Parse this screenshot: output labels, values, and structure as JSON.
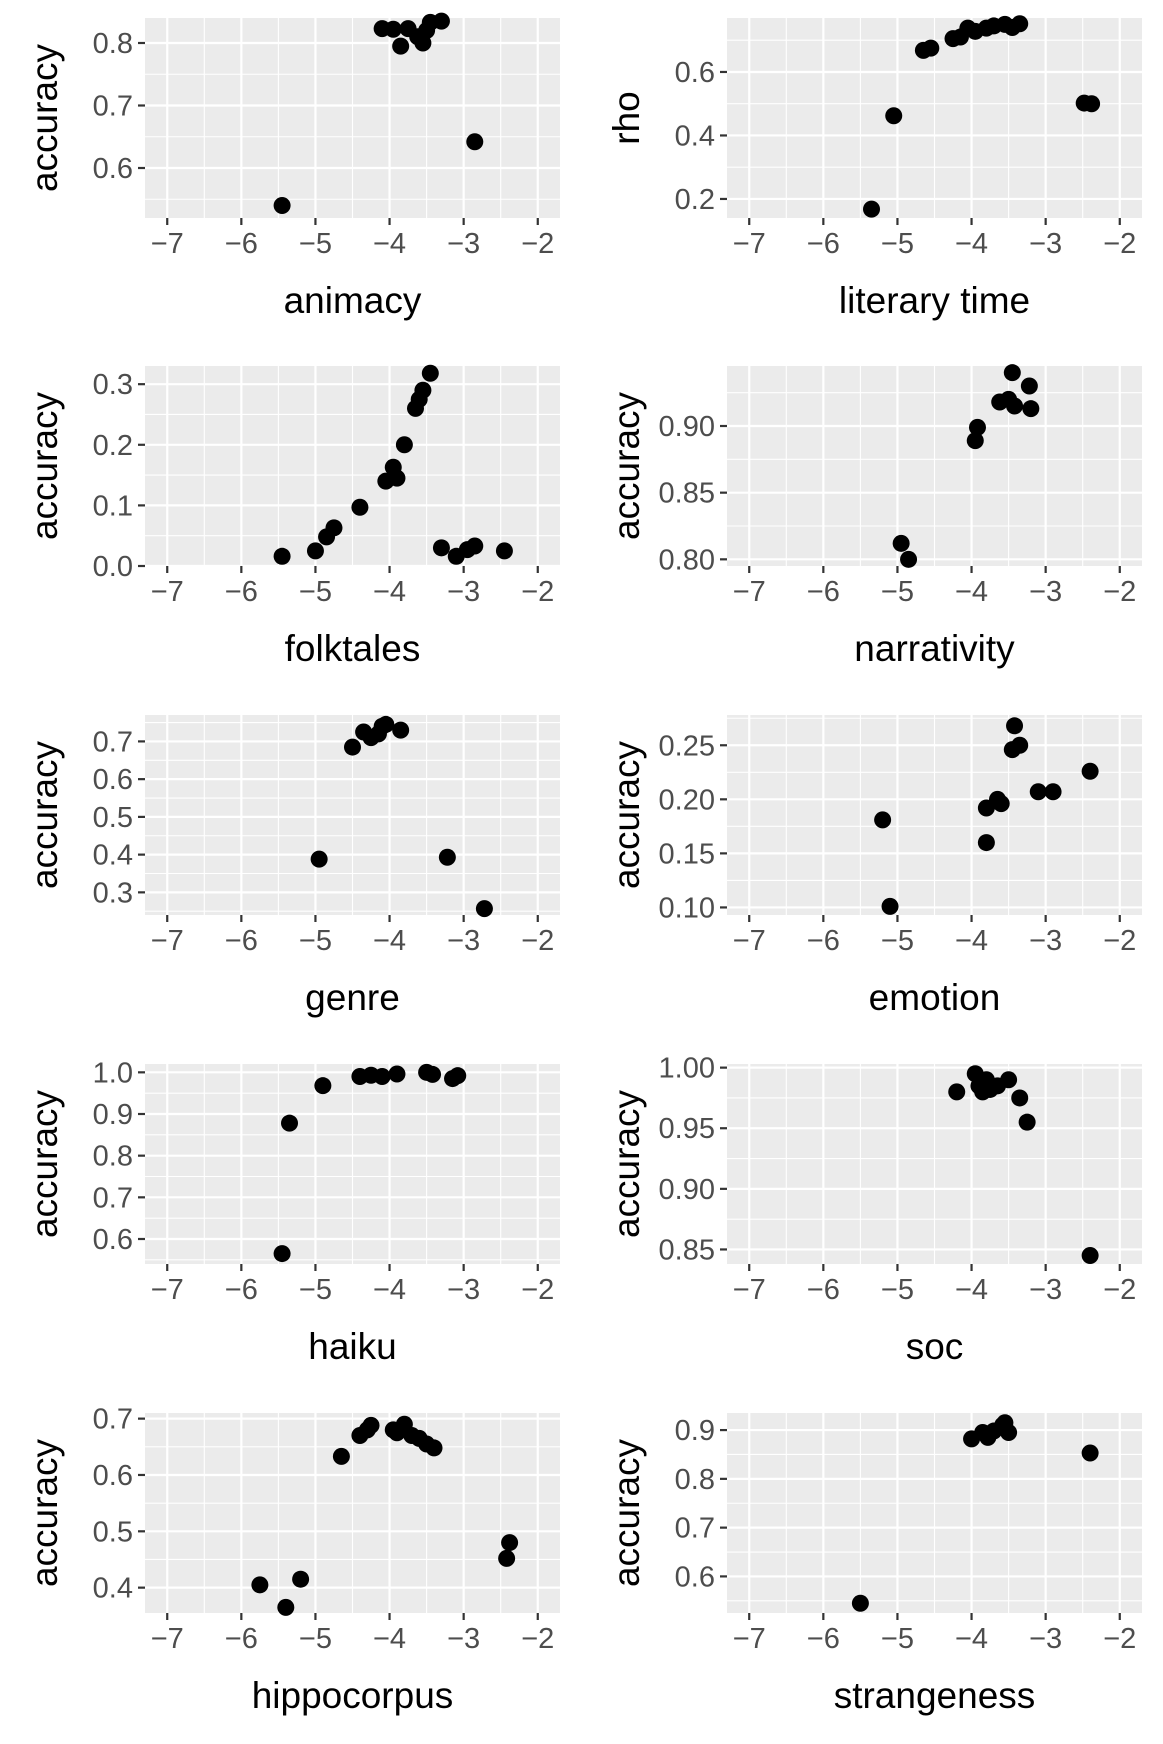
{
  "chart_data": [
    {
      "type": "scatter",
      "xlabel": "animacy",
      "ylabel": "accuracy",
      "xlim": [
        -7.3,
        -1.7
      ],
      "ylim": [
        0.52,
        0.84
      ],
      "xticks": [
        -7,
        -6,
        -5,
        -4,
        -3,
        -2
      ],
      "xtick_labels": [
        "−7",
        "−6",
        "−5",
        "−4",
        "−3",
        "−2"
      ],
      "yticks": [
        0.6,
        0.7,
        0.8
      ],
      "ytick_labels": [
        "0.6",
        "0.7",
        "0.8"
      ],
      "grid": true,
      "points": [
        {
          "x": -5.45,
          "y": 0.54
        },
        {
          "x": -4.1,
          "y": 0.823
        },
        {
          "x": -3.95,
          "y": 0.822
        },
        {
          "x": -3.85,
          "y": 0.795
        },
        {
          "x": -3.75,
          "y": 0.823
        },
        {
          "x": -3.62,
          "y": 0.81
        },
        {
          "x": -3.55,
          "y": 0.8
        },
        {
          "x": -3.5,
          "y": 0.82
        },
        {
          "x": -3.45,
          "y": 0.833
        },
        {
          "x": -3.3,
          "y": 0.835
        },
        {
          "x": -2.85,
          "y": 0.642
        }
      ]
    },
    {
      "type": "scatter",
      "xlabel": "literary time",
      "ylabel": "rho",
      "xlim": [
        -7.3,
        -1.7
      ],
      "ylim": [
        0.14,
        0.77
      ],
      "xticks": [
        -7,
        -6,
        -5,
        -4,
        -3,
        -2
      ],
      "xtick_labels": [
        "−7",
        "−6",
        "−5",
        "−4",
        "−3",
        "−2"
      ],
      "yticks": [
        0.2,
        0.4,
        0.6
      ],
      "ytick_labels": [
        "0.2",
        "0.4",
        "0.6"
      ],
      "grid": true,
      "points": [
        {
          "x": -5.35,
          "y": 0.168
        },
        {
          "x": -5.05,
          "y": 0.462
        },
        {
          "x": -4.65,
          "y": 0.668
        },
        {
          "x": -4.55,
          "y": 0.675
        },
        {
          "x": -4.25,
          "y": 0.705
        },
        {
          "x": -4.15,
          "y": 0.71
        },
        {
          "x": -4.05,
          "y": 0.738
        },
        {
          "x": -3.95,
          "y": 0.728
        },
        {
          "x": -3.8,
          "y": 0.738
        },
        {
          "x": -3.7,
          "y": 0.745
        },
        {
          "x": -3.55,
          "y": 0.75
        },
        {
          "x": -3.45,
          "y": 0.74
        },
        {
          "x": -3.35,
          "y": 0.752
        },
        {
          "x": -2.48,
          "y": 0.502
        },
        {
          "x": -2.38,
          "y": 0.5
        }
      ]
    },
    {
      "type": "scatter",
      "xlabel": "folktales",
      "ylabel": "accuracy",
      "xlim": [
        -7.3,
        -1.7
      ],
      "ylim": [
        0.0,
        0.33
      ],
      "xticks": [
        -7,
        -6,
        -5,
        -4,
        -3,
        -2
      ],
      "xtick_labels": [
        "−7",
        "−6",
        "−5",
        "−4",
        "−3",
        "−2"
      ],
      "yticks": [
        0.0,
        0.1,
        0.2,
        0.3
      ],
      "ytick_labels": [
        "0.0",
        "0.1",
        "0.2",
        "0.3"
      ],
      "grid": true,
      "points": [
        {
          "x": -5.45,
          "y": 0.016
        },
        {
          "x": -5.0,
          "y": 0.025
        },
        {
          "x": -4.85,
          "y": 0.048
        },
        {
          "x": -4.75,
          "y": 0.063
        },
        {
          "x": -4.4,
          "y": 0.097
        },
        {
          "x": -4.05,
          "y": 0.14
        },
        {
          "x": -3.95,
          "y": 0.163
        },
        {
          "x": -3.9,
          "y": 0.145
        },
        {
          "x": -3.8,
          "y": 0.2
        },
        {
          "x": -3.65,
          "y": 0.26
        },
        {
          "x": -3.6,
          "y": 0.275
        },
        {
          "x": -3.55,
          "y": 0.29
        },
        {
          "x": -3.45,
          "y": 0.318
        },
        {
          "x": -3.3,
          "y": 0.03
        },
        {
          "x": -3.1,
          "y": 0.016
        },
        {
          "x": -2.95,
          "y": 0.027
        },
        {
          "x": -2.85,
          "y": 0.033
        },
        {
          "x": -2.45,
          "y": 0.025
        }
      ]
    },
    {
      "type": "scatter",
      "xlabel": "narrativity",
      "ylabel": "accuracy",
      "xlim": [
        -7.3,
        -1.7
      ],
      "ylim": [
        0.795,
        0.945
      ],
      "xticks": [
        -7,
        -6,
        -5,
        -4,
        -3,
        -2
      ],
      "xtick_labels": [
        "−7",
        "−6",
        "−5",
        "−4",
        "−3",
        "−2"
      ],
      "yticks": [
        0.8,
        0.85,
        0.9
      ],
      "ytick_labels": [
        "0.80",
        "0.85",
        "0.90"
      ],
      "grid": true,
      "points": [
        {
          "x": -4.95,
          "y": 0.812
        },
        {
          "x": -4.85,
          "y": 0.8
        },
        {
          "x": -3.95,
          "y": 0.889
        },
        {
          "x": -3.92,
          "y": 0.899
        },
        {
          "x": -3.62,
          "y": 0.918
        },
        {
          "x": -3.5,
          "y": 0.92
        },
        {
          "x": -3.45,
          "y": 0.94
        },
        {
          "x": -3.42,
          "y": 0.915
        },
        {
          "x": -3.22,
          "y": 0.93
        },
        {
          "x": -3.2,
          "y": 0.913
        }
      ]
    },
    {
      "type": "scatter",
      "xlabel": "genre",
      "ylabel": "accuracy",
      "xlim": [
        -7.3,
        -1.7
      ],
      "ylim": [
        0.24,
        0.77
      ],
      "xticks": [
        -7,
        -6,
        -5,
        -4,
        -3,
        -2
      ],
      "xtick_labels": [
        "−7",
        "−6",
        "−5",
        "−4",
        "−3",
        "−2"
      ],
      "yticks": [
        0.3,
        0.4,
        0.5,
        0.6,
        0.7
      ],
      "ytick_labels": [
        "0.3",
        "0.4",
        "0.5",
        "0.6",
        "0.7"
      ],
      "grid": true,
      "points": [
        {
          "x": -4.95,
          "y": 0.388
        },
        {
          "x": -4.5,
          "y": 0.685
        },
        {
          "x": -4.35,
          "y": 0.725
        },
        {
          "x": -4.25,
          "y": 0.71
        },
        {
          "x": -4.15,
          "y": 0.72
        },
        {
          "x": -4.1,
          "y": 0.74
        },
        {
          "x": -4.05,
          "y": 0.745
        },
        {
          "x": -3.85,
          "y": 0.73
        },
        {
          "x": -3.22,
          "y": 0.393
        },
        {
          "x": -2.72,
          "y": 0.257
        }
      ]
    },
    {
      "type": "scatter",
      "xlabel": "emotion",
      "ylabel": "accuracy",
      "xlim": [
        -7.3,
        -1.7
      ],
      "ylim": [
        0.093,
        0.278
      ],
      "xticks": [
        -7,
        -6,
        -5,
        -4,
        -3,
        -2
      ],
      "xtick_labels": [
        "−7",
        "−6",
        "−5",
        "−4",
        "−3",
        "−2"
      ],
      "yticks": [
        0.1,
        0.15,
        0.2,
        0.25
      ],
      "ytick_labels": [
        "0.10",
        "0.15",
        "0.20",
        "0.25"
      ],
      "grid": true,
      "points": [
        {
          "x": -5.2,
          "y": 0.181
        },
        {
          "x": -5.1,
          "y": 0.101
        },
        {
          "x": -3.8,
          "y": 0.16
        },
        {
          "x": -3.8,
          "y": 0.192
        },
        {
          "x": -3.65,
          "y": 0.2
        },
        {
          "x": -3.6,
          "y": 0.196
        },
        {
          "x": -3.45,
          "y": 0.246
        },
        {
          "x": -3.42,
          "y": 0.268
        },
        {
          "x": -3.35,
          "y": 0.25
        },
        {
          "x": -3.1,
          "y": 0.207
        },
        {
          "x": -2.9,
          "y": 0.207
        },
        {
          "x": -2.4,
          "y": 0.226
        }
      ]
    },
    {
      "type": "scatter",
      "xlabel": "haiku",
      "ylabel": "accuracy",
      "xlim": [
        -7.3,
        -1.7
      ],
      "ylim": [
        0.54,
        1.02
      ],
      "xticks": [
        -7,
        -6,
        -5,
        -4,
        -3,
        -2
      ],
      "xtick_labels": [
        "−7",
        "−6",
        "−5",
        "−4",
        "−3",
        "−2"
      ],
      "yticks": [
        0.6,
        0.7,
        0.8,
        0.9,
        1.0
      ],
      "ytick_labels": [
        "0.6",
        "0.7",
        "0.8",
        "0.9",
        "1.0"
      ],
      "grid": true,
      "points": [
        {
          "x": -5.45,
          "y": 0.565
        },
        {
          "x": -5.35,
          "y": 0.878
        },
        {
          "x": -4.9,
          "y": 0.968
        },
        {
          "x": -4.4,
          "y": 0.99
        },
        {
          "x": -4.25,
          "y": 0.993
        },
        {
          "x": -4.1,
          "y": 0.99
        },
        {
          "x": -3.9,
          "y": 0.996
        },
        {
          "x": -3.5,
          "y": 1.0
        },
        {
          "x": -3.42,
          "y": 0.995
        },
        {
          "x": -3.15,
          "y": 0.985
        },
        {
          "x": -3.08,
          "y": 0.992
        }
      ]
    },
    {
      "type": "scatter",
      "xlabel": "soc",
      "ylabel": "accuracy",
      "xlim": [
        -7.3,
        -1.7
      ],
      "ylim": [
        0.838,
        1.003
      ],
      "xticks": [
        -7,
        -6,
        -5,
        -4,
        -3,
        -2
      ],
      "xtick_labels": [
        "−7",
        "−6",
        "−5",
        "−4",
        "−3",
        "−2"
      ],
      "yticks": [
        0.85,
        0.9,
        0.95,
        1.0
      ],
      "ytick_labels": [
        "0.85",
        "0.90",
        "0.95",
        "1.00"
      ],
      "grid": true,
      "points": [
        {
          "x": -4.2,
          "y": 0.98
        },
        {
          "x": -3.95,
          "y": 0.995
        },
        {
          "x": -3.9,
          "y": 0.985
        },
        {
          "x": -3.85,
          "y": 0.98
        },
        {
          "x": -3.8,
          "y": 0.99
        },
        {
          "x": -3.75,
          "y": 0.982
        },
        {
          "x": -3.65,
          "y": 0.985
        },
        {
          "x": -3.5,
          "y": 0.99
        },
        {
          "x": -3.35,
          "y": 0.975
        },
        {
          "x": -3.25,
          "y": 0.955
        },
        {
          "x": -2.4,
          "y": 0.845
        }
      ]
    },
    {
      "type": "scatter",
      "xlabel": "hippocorpus",
      "ylabel": "accuracy",
      "xlim": [
        -7.3,
        -1.7
      ],
      "ylim": [
        0.355,
        0.71
      ],
      "xticks": [
        -7,
        -6,
        -5,
        -4,
        -3,
        -2
      ],
      "xtick_labels": [
        "−7",
        "−6",
        "−5",
        "−4",
        "−3",
        "−2"
      ],
      "yticks": [
        0.4,
        0.5,
        0.6,
        0.7
      ],
      "ytick_labels": [
        "0.4",
        "0.5",
        "0.6",
        "0.7"
      ],
      "grid": true,
      "points": [
        {
          "x": -5.75,
          "y": 0.405
        },
        {
          "x": -5.4,
          "y": 0.365
        },
        {
          "x": -5.2,
          "y": 0.415
        },
        {
          "x": -4.65,
          "y": 0.633
        },
        {
          "x": -4.4,
          "y": 0.67
        },
        {
          "x": -4.3,
          "y": 0.68
        },
        {
          "x": -4.25,
          "y": 0.688
        },
        {
          "x": -3.95,
          "y": 0.68
        },
        {
          "x": -3.9,
          "y": 0.675
        },
        {
          "x": -3.8,
          "y": 0.69
        },
        {
          "x": -3.7,
          "y": 0.67
        },
        {
          "x": -3.6,
          "y": 0.665
        },
        {
          "x": -3.5,
          "y": 0.655
        },
        {
          "x": -3.4,
          "y": 0.648
        },
        {
          "x": -2.42,
          "y": 0.452
        },
        {
          "x": -2.38,
          "y": 0.48
        }
      ]
    },
    {
      "type": "scatter",
      "xlabel": "strangeness",
      "ylabel": "accuracy",
      "xlim": [
        -7.3,
        -1.7
      ],
      "ylim": [
        0.525,
        0.935
      ],
      "xticks": [
        -7,
        -6,
        -5,
        -4,
        -3,
        -2
      ],
      "xtick_labels": [
        "−7",
        "−6",
        "−5",
        "−4",
        "−3",
        "−2"
      ],
      "yticks": [
        0.6,
        0.7,
        0.8,
        0.9
      ],
      "ytick_labels": [
        "0.6",
        "0.7",
        "0.8",
        "0.9"
      ],
      "grid": true,
      "points": [
        {
          "x": -5.5,
          "y": 0.545
        },
        {
          "x": -4.0,
          "y": 0.882
        },
        {
          "x": -3.85,
          "y": 0.895
        },
        {
          "x": -3.78,
          "y": 0.885
        },
        {
          "x": -3.7,
          "y": 0.898
        },
        {
          "x": -3.58,
          "y": 0.91
        },
        {
          "x": -3.55,
          "y": 0.915
        },
        {
          "x": -3.5,
          "y": 0.895
        },
        {
          "x": -2.4,
          "y": 0.853
        }
      ]
    }
  ]
}
